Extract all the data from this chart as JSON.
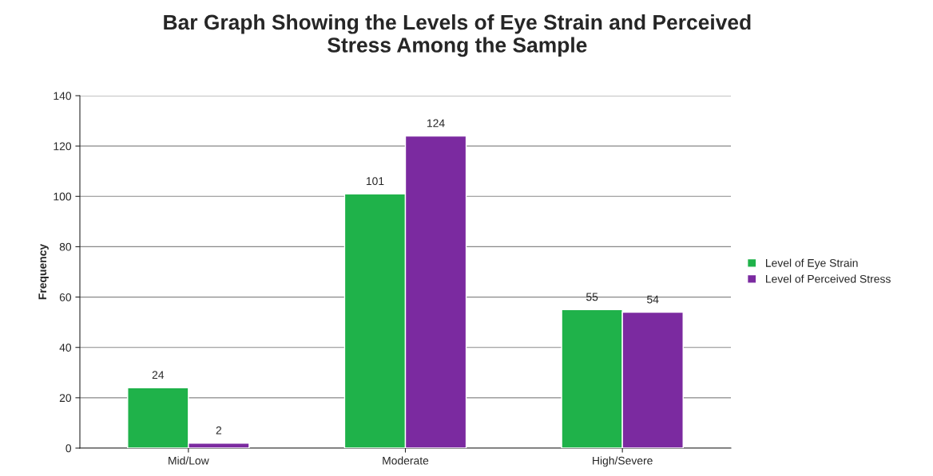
{
  "chart_data": {
    "type": "bar",
    "title": "Bar Graph Showing the Levels of Eye Strain and Perceived\nStress Among the Sample",
    "ylabel": "Frequency",
    "categories": [
      "Mid/Low",
      "Moderate",
      "High/Severe"
    ],
    "series": [
      {
        "name": "Level of Eye Strain",
        "color": "#1fb24a",
        "values": [
          24,
          101,
          55
        ]
      },
      {
        "name": "Level of Perceived Stress",
        "color": "#7b2aa0",
        "values": [
          2,
          124,
          54
        ]
      }
    ],
    "ylim": [
      0,
      140
    ],
    "yticks": [
      0,
      20,
      40,
      60,
      80,
      100,
      120,
      140
    ],
    "grid": "y",
    "legend": "right",
    "data_labels": true
  }
}
